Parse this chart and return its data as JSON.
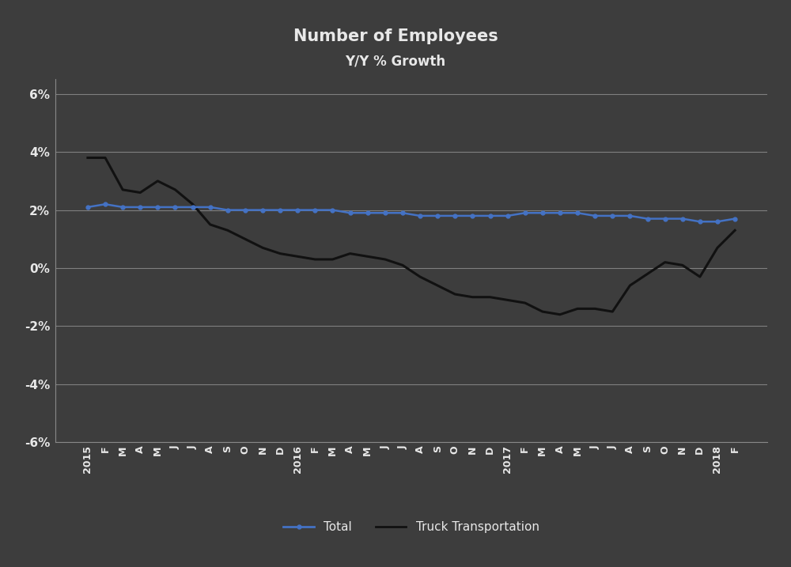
{
  "title": "Number of Employees",
  "subtitle": "Y/Y % Growth",
  "background_color": "#3d3d3d",
  "text_color": "#e8e8e8",
  "grid_color": "#888888",
  "ylim": [
    -0.06,
    0.065
  ],
  "yticks": [
    -0.06,
    -0.04,
    -0.02,
    0.0,
    0.02,
    0.04,
    0.06
  ],
  "ytick_labels": [
    "-6%",
    "-4%",
    "-2%",
    "0%",
    "2%",
    "4%",
    "6%"
  ],
  "x_labels": [
    "2015",
    "F",
    "M",
    "A",
    "M",
    "J",
    "J",
    "A",
    "S",
    "O",
    "N",
    "D",
    "2016",
    "F",
    "M",
    "A",
    "M",
    "J",
    "J",
    "A",
    "S",
    "O",
    "N",
    "D",
    "2017",
    "F",
    "M",
    "A",
    "M",
    "J",
    "J",
    "A",
    "S",
    "O",
    "N",
    "D",
    "2018",
    "F"
  ],
  "total_color": "#4472c4",
  "truck_color": "#111111",
  "total_linewidth": 1.8,
  "truck_linewidth": 2.2,
  "total_values": [
    0.021,
    0.022,
    0.021,
    0.021,
    0.021,
    0.021,
    0.021,
    0.021,
    0.02,
    0.02,
    0.02,
    0.02,
    0.02,
    0.02,
    0.02,
    0.019,
    0.019,
    0.019,
    0.019,
    0.018,
    0.018,
    0.018,
    0.018,
    0.018,
    0.018,
    0.019,
    0.019,
    0.019,
    0.019,
    0.018,
    0.018,
    0.018,
    0.017,
    0.017,
    0.017,
    0.016,
    0.016,
    0.017
  ],
  "truck_values": [
    0.038,
    0.038,
    0.027,
    0.026,
    0.03,
    0.027,
    0.022,
    0.015,
    0.013,
    0.01,
    0.007,
    0.005,
    0.004,
    0.003,
    0.003,
    0.005,
    0.004,
    0.003,
    0.001,
    -0.003,
    -0.006,
    -0.009,
    -0.01,
    -0.01,
    -0.011,
    -0.012,
    -0.015,
    -0.016,
    -0.014,
    -0.014,
    -0.015,
    -0.006,
    -0.002,
    0.002,
    0.001,
    -0.003,
    0.007,
    0.013
  ],
  "legend_total_label": "Total",
  "legend_truck_label": "Truck Transportation"
}
